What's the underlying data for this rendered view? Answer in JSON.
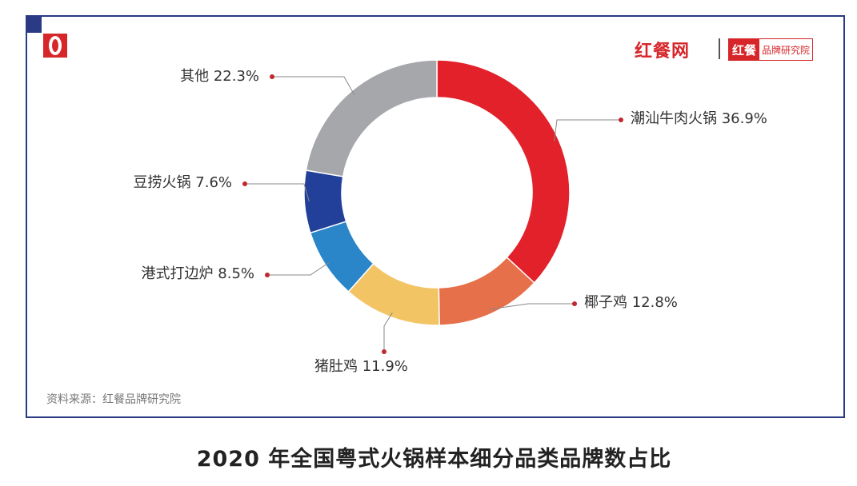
{
  "brand": {
    "name": "红餐网",
    "badge_red": "红餐",
    "badge_text": "品牌研究院"
  },
  "source_note": "资料来源：红餐品牌研究院",
  "caption": "2020 年全国粤式火锅样本细分品类品牌数占比",
  "chart_data": {
    "type": "pie",
    "donut": true,
    "title": "2020 年全国粤式火锅样本细分品类品牌数占比",
    "unit": "%",
    "slices": [
      {
        "name": "潮汕牛肉火锅",
        "value": 36.9,
        "label": "潮汕牛肉火锅 36.9%",
        "color": "#e2212b"
      },
      {
        "name": "椰子鸡",
        "value": 12.8,
        "label": "椰子鸡 12.8%",
        "color": "#e6704a"
      },
      {
        "name": "猪肚鸡",
        "value": 11.9,
        "label": "猪肚鸡 11.9%",
        "color": "#f2c464"
      },
      {
        "name": "港式打边炉",
        "value": 8.5,
        "label": "港式打边炉 8.5%",
        "color": "#2a86c8"
      },
      {
        "name": "豆捞火锅",
        "value": 7.6,
        "label": "豆捞火锅 7.6%",
        "color": "#22409a"
      },
      {
        "name": "其他",
        "value": 22.3,
        "label": "其他 22.3%",
        "color": "#a6a7ab"
      }
    ]
  }
}
